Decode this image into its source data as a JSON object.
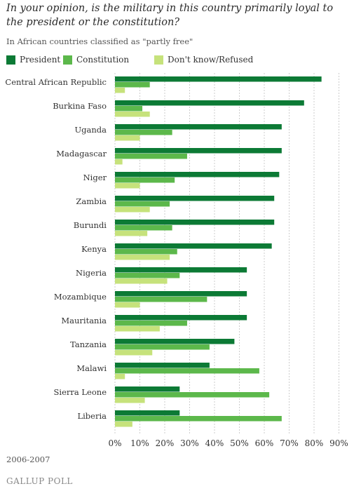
{
  "title": "In your opinion, is the military in this country primarily loyal to the president or the constitution?",
  "subtitle": "In African countries classified as \"partly free\"",
  "date_range": "2006-2007",
  "brand": "GALLUP POLL",
  "colors": {
    "president": "#0c7a35",
    "constitution": "#5cb84b",
    "dont_know": "#c6e27b",
    "grid": "#cccccc"
  },
  "chart_data": {
    "type": "bar",
    "orientation": "horizontal",
    "categories": [
      "Central African Republic",
      "Burkina Faso",
      "Uganda",
      "Madagascar",
      "Niger",
      "Zambia",
      "Burundi",
      "Kenya",
      "Nigeria",
      "Mozambique",
      "Mauritania",
      "Tanzania",
      "Malawi",
      "Sierra Leone",
      "Liberia"
    ],
    "series": [
      {
        "name": "President",
        "color": "#0c7a35",
        "values": [
          83,
          76,
          67,
          67,
          66,
          64,
          64,
          63,
          53,
          53,
          53,
          48,
          38,
          26,
          26
        ]
      },
      {
        "name": "Constitution",
        "color": "#5cb84b",
        "values": [
          14,
          11,
          23,
          29,
          24,
          22,
          23,
          25,
          26,
          37,
          29,
          38,
          58,
          62,
          67
        ]
      },
      {
        "name": "Don't know/Refused",
        "color": "#c6e27b",
        "values": [
          4,
          14,
          10,
          3,
          10,
          14,
          13,
          22,
          21,
          10,
          18,
          15,
          4,
          12,
          7
        ]
      }
    ],
    "xlim": [
      0,
      90
    ],
    "xticks": [
      "0%",
      "10%",
      "20%",
      "30%",
      "40%",
      "50%",
      "60%",
      "70%",
      "80%",
      "90%"
    ],
    "grid": "vertical dashed",
    "legend": "top-left"
  }
}
